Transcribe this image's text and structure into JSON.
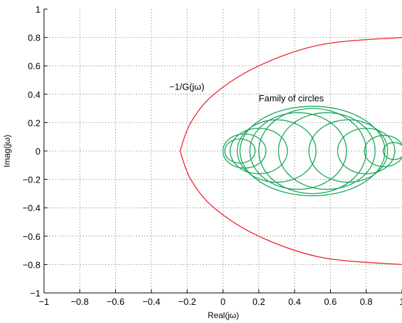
{
  "chart_data": {
    "type": "line",
    "title": "",
    "xlabel": "Real(jω)",
    "ylabel": "Imag(jω)",
    "xlim": [
      -1,
      1
    ],
    "ylim": [
      -1,
      1
    ],
    "grid": true,
    "grid_style": "dotted",
    "x_ticks": [
      "−1",
      "−0.8",
      "−0.6",
      "−0.4",
      "−0.2",
      "0",
      "0.2",
      "0.4",
      "0.6",
      "0.8",
      "1"
    ],
    "y_ticks": [
      "1",
      "0.8",
      "0.6",
      "0.4",
      "0.2",
      "0",
      "−0.2",
      "−0.4",
      "−0.6",
      "−0.8",
      "−1"
    ],
    "series": [
      {
        "kind": "curve",
        "color": "#e8232a",
        "vertex": [
          -0.24,
          0
        ],
        "upper": [
          [
            -0.24,
            0
          ],
          [
            -0.18,
            0.2
          ],
          [
            -0.05,
            0.4
          ],
          [
            0.2,
            0.6
          ],
          [
            0.55,
            0.75
          ],
          [
            1.0,
            0.8
          ]
        ],
        "lower": [
          [
            -0.24,
            0
          ],
          [
            -0.18,
            -0.2
          ],
          [
            -0.05,
            -0.4
          ],
          [
            0.2,
            -0.6
          ],
          [
            0.55,
            -0.75
          ],
          [
            1.0,
            -0.8
          ]
        ]
      },
      {
        "kind": "circles",
        "color": "#1aa65a",
        "circles": [
          {
            "center": [
              0.095,
              0
            ],
            "radius": 0.085
          },
          {
            "center": [
              0.12,
              0
            ],
            "radius": 0.12
          },
          {
            "center": [
              0.2,
              0
            ],
            "radius": 0.16
          },
          {
            "center": [
              0.3,
              0
            ],
            "radius": 0.22
          },
          {
            "center": [
              0.42,
              0
            ],
            "radius": 0.27
          },
          {
            "center": [
              0.5,
              0
            ],
            "radius": 0.3
          },
          {
            "center": [
              0.58,
              0
            ],
            "radius": 0.27
          },
          {
            "center": [
              0.7,
              0
            ],
            "radius": 0.22
          },
          {
            "center": [
              0.8,
              0
            ],
            "radius": 0.16
          },
          {
            "center": [
              0.9,
              0
            ],
            "radius": 0.11
          },
          {
            "center": [
              0.955,
              0
            ],
            "radius": 0.06
          }
        ],
        "envelope": {
          "center": [
            0.5,
            0
          ],
          "rx": 0.405,
          "ry": 0.315
        }
      }
    ],
    "annotations": [
      {
        "text": "−1/G(jω)",
        "x": -0.3,
        "y": 0.43
      },
      {
        "text": "Family of circles",
        "x": 0.2,
        "y": 0.35
      }
    ]
  }
}
